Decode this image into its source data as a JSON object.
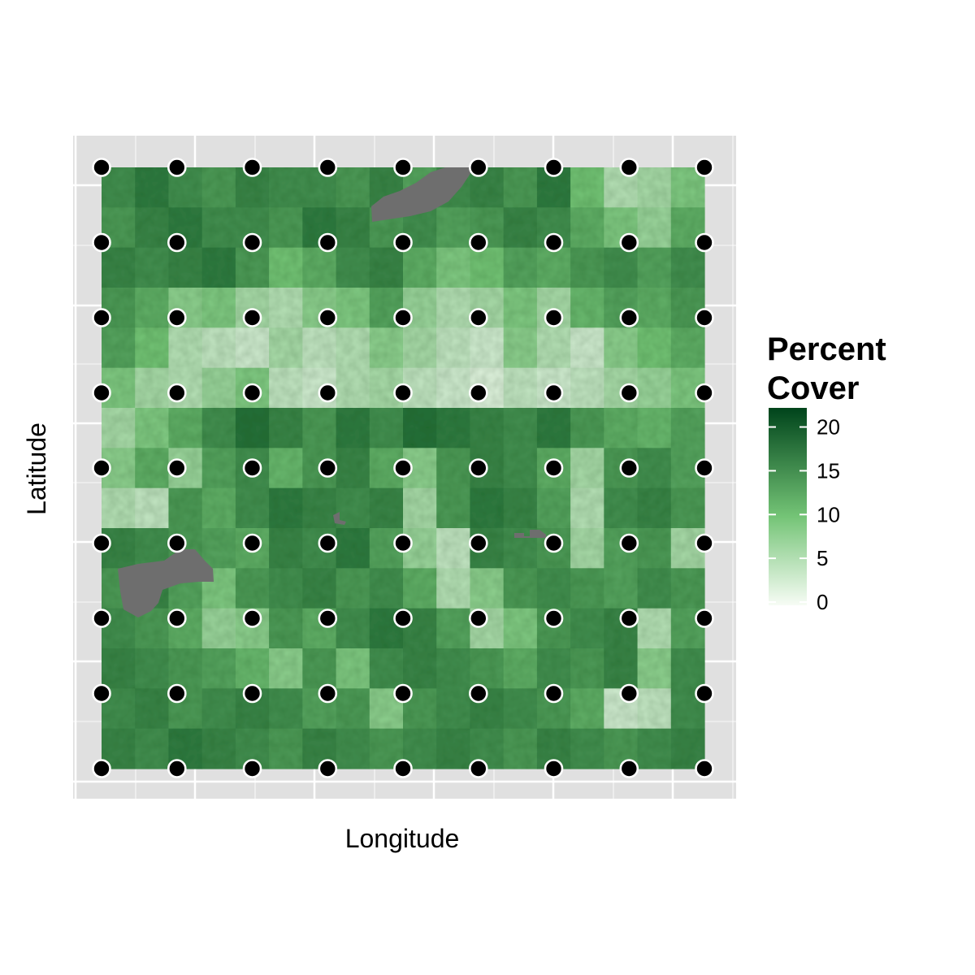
{
  "chart_data": {
    "type": "heatmap",
    "title": "",
    "xlabel": "Longitude",
    "ylabel": "Latitude",
    "legend": {
      "title_lines": [
        "Percent",
        "Cover"
      ],
      "ticks": [
        0,
        5,
        10,
        15,
        20
      ],
      "range": [
        0,
        22
      ],
      "placement": "right"
    },
    "colors": {
      "panel_background": "#e0e0e0",
      "grid": "#ffffff",
      "na_value": "#6e6e6e",
      "gradient_low": "#f7fcf5",
      "gradient_mid": "#74c476",
      "gradient_high": "#00441b",
      "point_fill": "#000000",
      "point_stroke": "#ffffff"
    },
    "raster_cover_percent": [
      [
        15,
        17,
        15,
        14,
        16,
        15,
        15,
        14,
        16,
        13,
        15,
        16,
        14,
        17,
        10,
        5,
        6,
        9
      ],
      [
        14,
        16,
        17,
        15,
        15,
        14,
        17,
        16,
        14,
        15,
        13,
        14,
        16,
        15,
        12,
        9,
        7,
        12
      ],
      [
        16,
        15,
        16,
        17,
        14,
        10,
        12,
        15,
        16,
        12,
        9,
        10,
        13,
        12,
        14,
        15,
        13,
        15
      ],
      [
        14,
        12,
        8,
        9,
        6,
        5,
        8,
        9,
        13,
        7,
        5,
        6,
        9,
        6,
        11,
        13,
        12,
        14
      ],
      [
        13,
        10,
        5,
        4,
        3,
        6,
        4,
        5,
        8,
        6,
        4,
        3,
        8,
        5,
        3,
        8,
        10,
        12
      ],
      [
        9,
        6,
        5,
        7,
        9,
        4,
        3,
        5,
        6,
        4,
        3,
        2,
        4,
        3,
        4,
        6,
        7,
        9
      ],
      [
        6,
        9,
        12,
        15,
        18,
        16,
        14,
        17,
        15,
        18,
        17,
        16,
        15,
        17,
        14,
        12,
        11,
        13
      ],
      [
        8,
        12,
        7,
        13,
        15,
        11,
        14,
        16,
        12,
        8,
        14,
        16,
        15,
        12,
        6,
        14,
        15,
        13
      ],
      [
        5,
        4,
        14,
        12,
        15,
        17,
        16,
        15,
        16,
        6,
        14,
        17,
        16,
        13,
        5,
        15,
        16,
        14
      ],
      [
        16,
        15,
        14,
        13,
        12,
        16,
        15,
        17,
        13,
        7,
        4,
        16,
        15,
        14,
        6,
        13,
        14,
        6
      ],
      [
        14,
        16,
        13,
        9,
        14,
        15,
        16,
        14,
        15,
        12,
        5,
        8,
        14,
        15,
        14,
        13,
        15,
        14
      ],
      [
        15,
        14,
        12,
        7,
        8,
        14,
        12,
        15,
        17,
        16,
        13,
        6,
        9,
        14,
        15,
        16,
        5,
        13
      ],
      [
        16,
        15,
        14,
        13,
        11,
        8,
        14,
        9,
        15,
        16,
        15,
        14,
        12,
        15,
        14,
        16,
        8,
        15
      ],
      [
        15,
        16,
        14,
        15,
        16,
        15,
        13,
        14,
        8,
        14,
        15,
        16,
        15,
        14,
        12,
        3,
        4,
        15
      ],
      [
        16,
        15,
        17,
        16,
        15,
        14,
        16,
        15,
        14,
        15,
        16,
        15,
        14,
        16,
        15,
        14,
        15,
        16
      ]
    ],
    "na_regions": [
      "lake-north",
      "lake-west",
      "patch-center",
      "patch-east"
    ],
    "sample_points": {
      "columns": 9,
      "rows": 9
    }
  }
}
